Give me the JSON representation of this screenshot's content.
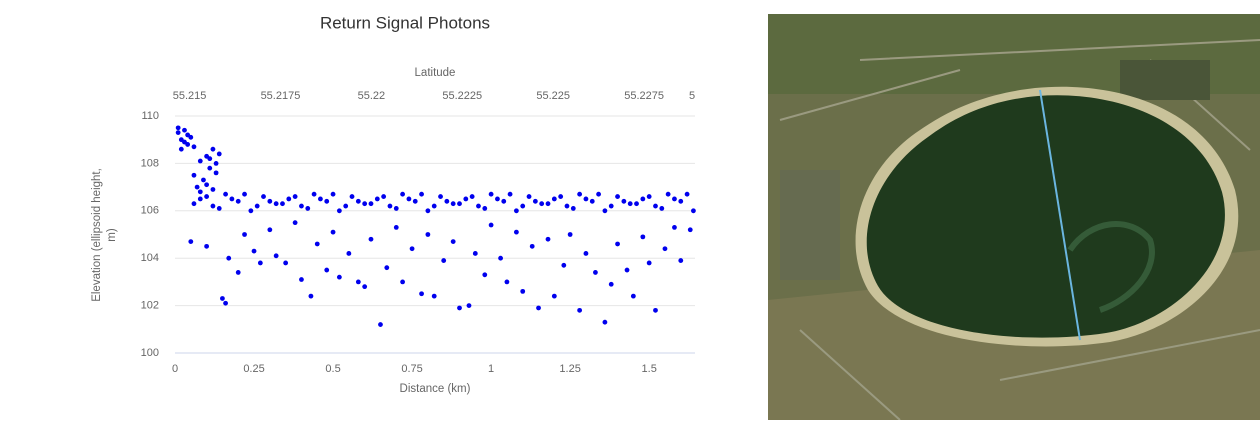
{
  "chart_data": {
    "type": "scatter",
    "title": "Return Signal Photons",
    "xlabel": "Distance (km)",
    "ylabel": "Elevation (ellipsoid height, m)",
    "x2label": "Latitude",
    "color": "#0000ee",
    "grid": true,
    "xlim": [
      0,
      1.645
    ],
    "xticks": [
      0,
      0.25,
      0.5,
      0.75,
      1,
      1.25,
      1.5
    ],
    "x2lim": [
      55.2146,
      55.2289
    ],
    "x2ticks": [
      55.215,
      55.2175,
      55.22,
      55.2225,
      55.225,
      55.2275,
      {
        "value": 55.23,
        "label": "5"
      }
    ],
    "ylim": [
      100,
      110
    ],
    "yticks": [
      100,
      102,
      104,
      106,
      108,
      110
    ],
    "x": [
      0.01,
      0.02,
      0.03,
      0.04,
      0.02,
      0.05,
      0.03,
      0.06,
      0.01,
      0.04,
      0.06,
      0.07,
      0.08,
      0.1,
      0.11,
      0.12,
      0.13,
      0.09,
      0.11,
      0.13,
      0.1,
      0.12,
      0.08,
      0.14,
      0.06,
      0.1,
      0.14,
      0.18,
      0.22,
      0.26,
      0.3,
      0.34,
      0.38,
      0.42,
      0.46,
      0.5,
      0.54,
      0.58,
      0.62,
      0.66,
      0.7,
      0.74,
      0.78,
      0.82,
      0.86,
      0.9,
      0.94,
      0.98,
      1.02,
      1.06,
      1.1,
      1.14,
      1.18,
      1.22,
      1.26,
      1.3,
      1.34,
      1.38,
      1.42,
      1.46,
      1.5,
      1.54,
      1.58,
      1.62,
      0.08,
      0.12,
      0.16,
      0.2,
      0.24,
      0.28,
      0.32,
      0.36,
      0.4,
      0.44,
      0.48,
      0.52,
      0.56,
      0.6,
      0.64,
      0.68,
      0.72,
      0.76,
      0.8,
      0.84,
      0.88,
      0.92,
      0.96,
      1.0,
      1.04,
      1.08,
      1.12,
      1.16,
      1.2,
      1.24,
      1.28,
      1.32,
      1.36,
      1.4,
      1.44,
      1.48,
      1.52,
      1.56,
      1.6,
      1.64,
      0.05,
      0.1,
      0.15,
      0.16,
      0.17,
      0.2,
      0.22,
      0.25,
      0.27,
      0.3,
      0.32,
      0.35,
      0.38,
      0.4,
      0.43,
      0.45,
      0.48,
      0.5,
      0.52,
      0.55,
      0.58,
      0.6,
      0.62,
      0.65,
      0.67,
      0.7,
      0.72,
      0.75,
      0.78,
      0.8,
      0.82,
      0.85,
      0.88,
      0.9,
      0.93,
      0.95,
      0.98,
      1.0,
      1.03,
      1.05,
      1.08,
      1.1,
      1.13,
      1.15,
      1.18,
      1.2,
      1.23,
      1.25,
      1.28,
      1.3,
      1.33,
      1.36,
      1.38,
      1.4,
      1.43,
      1.45,
      1.48,
      1.5,
      1.52,
      1.55,
      1.58,
      1.6,
      1.63
    ],
    "values": [
      109.3,
      109.0,
      109.4,
      108.8,
      108.6,
      109.1,
      108.9,
      108.7,
      109.5,
      109.2,
      107.5,
      107.0,
      106.8,
      108.3,
      107.8,
      108.6,
      108.0,
      107.3,
      108.2,
      107.6,
      107.1,
      106.9,
      108.1,
      108.4,
      106.3,
      106.6,
      106.1,
      106.5,
      106.7,
      106.2,
      106.4,
      106.3,
      106.6,
      106.1,
      106.5,
      106.7,
      106.2,
      106.4,
      106.3,
      106.6,
      106.1,
      106.5,
      106.7,
      106.2,
      106.4,
      106.3,
      106.6,
      106.1,
      106.5,
      106.7,
      106.2,
      106.4,
      106.3,
      106.6,
      106.1,
      106.5,
      106.7,
      106.2,
      106.4,
      106.3,
      106.6,
      106.1,
      106.5,
      106.7,
      106.5,
      106.2,
      106.7,
      106.4,
      106.0,
      106.6,
      106.3,
      106.5,
      106.2,
      106.7,
      106.4,
      106.0,
      106.6,
      106.3,
      106.5,
      106.2,
      106.7,
      106.4,
      106.0,
      106.6,
      106.3,
      106.5,
      106.2,
      106.7,
      106.4,
      106.0,
      106.6,
      106.3,
      106.5,
      106.2,
      106.7,
      106.4,
      106.0,
      106.6,
      106.3,
      106.5,
      106.2,
      106.7,
      106.4,
      106.0,
      104.7,
      104.5,
      102.3,
      102.1,
      104.0,
      103.4,
      105.0,
      104.3,
      103.8,
      105.2,
      104.1,
      103.8,
      105.5,
      103.1,
      102.4,
      104.6,
      103.5,
      105.1,
      103.2,
      104.2,
      103.0,
      102.8,
      104.8,
      101.2,
      103.6,
      105.3,
      103.0,
      104.4,
      102.5,
      105.0,
      102.4,
      103.9,
      104.7,
      101.9,
      102.0,
      104.2,
      103.3,
      105.4,
      104.0,
      103.0,
      105.1,
      102.6,
      104.5,
      101.9,
      104.8,
      102.4,
      103.7,
      105.0,
      101.8,
      104.2,
      103.4,
      101.3,
      102.9,
      104.6,
      103.5,
      102.4,
      104.9,
      103.8,
      101.8,
      104.4,
      105.3,
      103.9,
      105.2
    ]
  }
}
